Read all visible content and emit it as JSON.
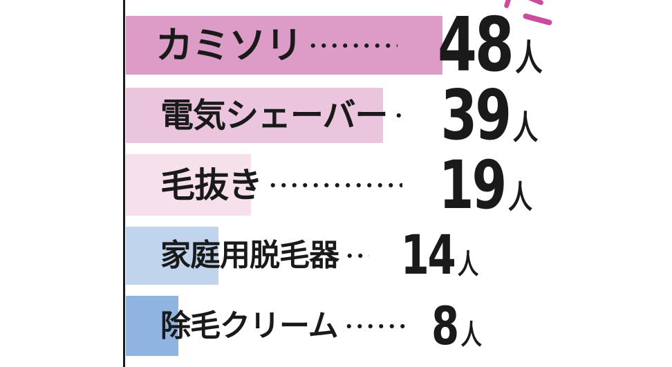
{
  "chart_data": {
    "type": "bar",
    "orientation": "horizontal",
    "title": "",
    "unit": "人",
    "categories": [
      "カミソリ",
      "電気シェーバー",
      "毛抜き",
      "家庭用脱毛器",
      "除毛クリーム"
    ],
    "values": [
      48,
      39,
      19,
      14,
      8
    ],
    "value_labels": [
      "48人",
      "39人",
      "19人",
      "14人",
      "8人"
    ],
    "bar_colors": [
      "#DC9CC7",
      "#EBC5DD",
      "#F5E0EB",
      "#C1D4EE",
      "#90B4E1"
    ],
    "legend": "none",
    "grid": "off",
    "axis": {
      "baseline": "left-vertical-black-line"
    }
  },
  "decoration": {
    "emphasis_color": "#CB4C9E",
    "axis_color": "#1A1A1A",
    "text_color": "#1A1A1A",
    "background_color": "#FFFFFF"
  }
}
